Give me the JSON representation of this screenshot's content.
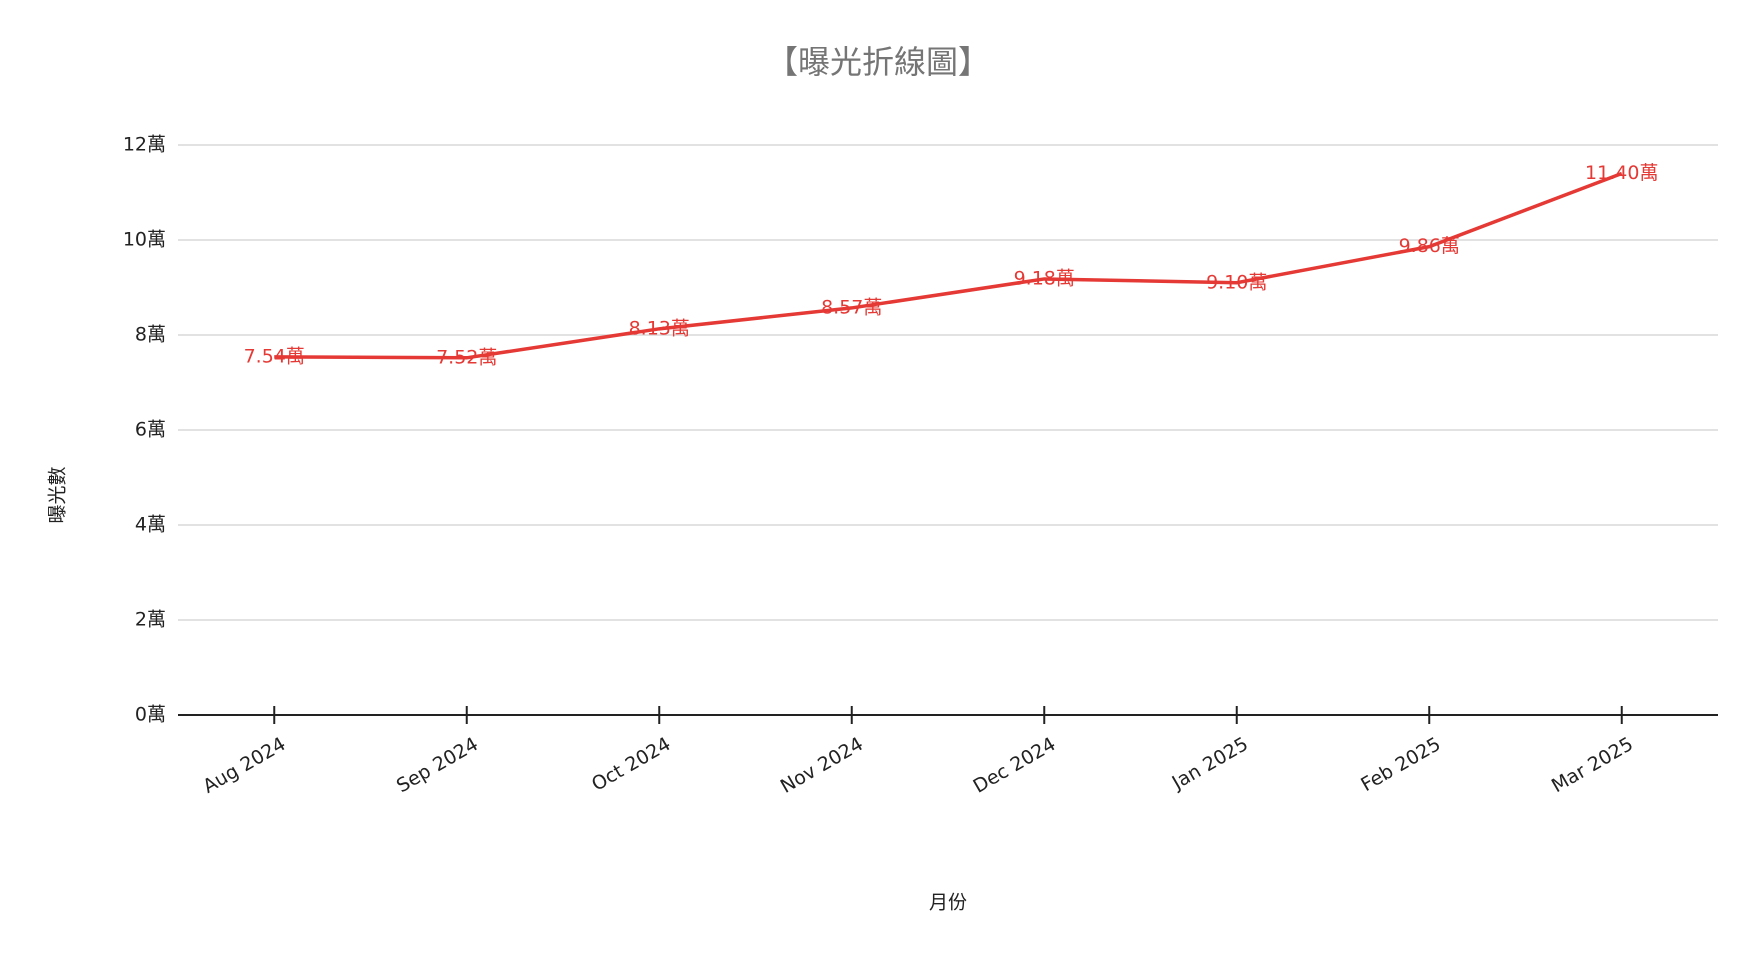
{
  "chart_data": {
    "type": "line",
    "title": "【曝光折線圖】",
    "x_label": "月份",
    "y_label": "曝光數",
    "categories": [
      "Aug 2024",
      "Sep 2024",
      "Oct 2024",
      "Nov 2024",
      "Dec 2024",
      "Jan 2025",
      "Feb 2025",
      "Mar 2025"
    ],
    "series": [
      {
        "name": "曝光數",
        "color": "#e53935",
        "values": [
          7.54,
          7.52,
          8.13,
          8.57,
          9.18,
          9.1,
          9.86,
          11.4
        ],
        "value_labels": [
          "7.54萬",
          "7.52萬",
          "8.13萬",
          "8.57萬",
          "9.18萬",
          "9.10萬",
          "9.86萬",
          "11.40萬"
        ]
      }
    ],
    "ylim": [
      0,
      12
    ],
    "yticks": [
      {
        "value": 0,
        "label": "0萬"
      },
      {
        "value": 2,
        "label": "2萬"
      },
      {
        "value": 4,
        "label": "4萬"
      },
      {
        "value": 6,
        "label": "6萬"
      },
      {
        "value": 8,
        "label": "8萬"
      },
      {
        "value": 10,
        "label": "10萬"
      },
      {
        "value": 12,
        "label": "12萬"
      }
    ],
    "grid": true
  }
}
